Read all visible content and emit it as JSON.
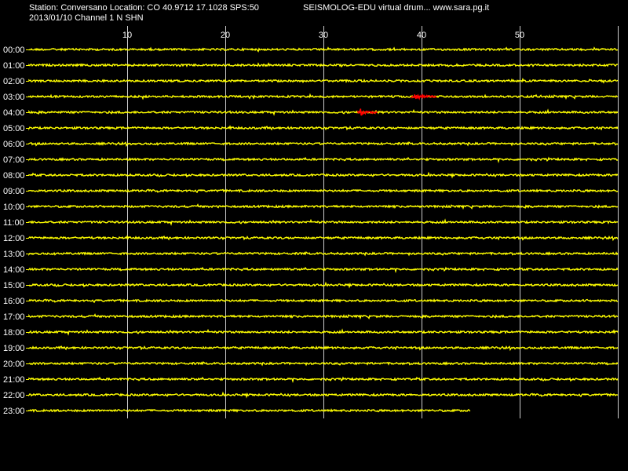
{
  "header": {
    "station_line": "Station: Conversano Location: CO 40.9712 17.1028 SPS:50",
    "site_line": "SEISMOLOG-EDU virtual drum... www.sara.pg.it",
    "date_line": "2013/01/10  Channel 1 N SHN"
  },
  "colors": {
    "background": "#000000",
    "trace": "#ffff00",
    "event": "#ff0000",
    "grid": "#ffffff",
    "text": "#ffffff"
  },
  "chart_data": {
    "type": "line",
    "title": "",
    "xlabel": "",
    "ylabel": "",
    "x_unit": "minutes",
    "xlim": [
      0,
      60
    ],
    "x_ticks": [
      10,
      20,
      30,
      40,
      50
    ],
    "grid": true,
    "rows": [
      {
        "label": "00:00",
        "end_minute": 60
      },
      {
        "label": "01:00",
        "end_minute": 60
      },
      {
        "label": "02:00",
        "end_minute": 60
      },
      {
        "label": "03:00",
        "end_minute": 60
      },
      {
        "label": "04:00",
        "end_minute": 60
      },
      {
        "label": "05:00",
        "end_minute": 60
      },
      {
        "label": "06:00",
        "end_minute": 60
      },
      {
        "label": "07:00",
        "end_minute": 60
      },
      {
        "label": "08:00",
        "end_minute": 60
      },
      {
        "label": "09:00",
        "end_minute": 60
      },
      {
        "label": "10:00",
        "end_minute": 60
      },
      {
        "label": "11:00",
        "end_minute": 60
      },
      {
        "label": "12:00",
        "end_minute": 60
      },
      {
        "label": "13:00",
        "end_minute": 60
      },
      {
        "label": "14:00",
        "end_minute": 60
      },
      {
        "label": "15:00",
        "end_minute": 60
      },
      {
        "label": "16:00",
        "end_minute": 60
      },
      {
        "label": "17:00",
        "end_minute": 60
      },
      {
        "label": "18:00",
        "end_minute": 60
      },
      {
        "label": "19:00",
        "end_minute": 60
      },
      {
        "label": "20:00",
        "end_minute": 60
      },
      {
        "label": "21:00",
        "end_minute": 60
      },
      {
        "label": "22:00",
        "end_minute": 60
      },
      {
        "label": "23:00",
        "end_minute": 45
      }
    ],
    "events": [
      {
        "row": "03:00",
        "start_minute": 39,
        "end_minute": 41.5
      },
      {
        "row": "04:00",
        "start_minute": 33.5,
        "end_minute": 35.5
      }
    ]
  }
}
